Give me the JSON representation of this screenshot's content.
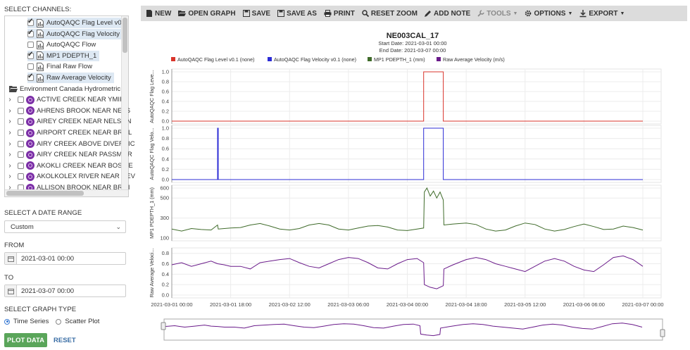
{
  "left": {
    "select_channels": "SELECT CHANNELS:",
    "channels": [
      {
        "label": "AutoQAQC Flag Level v0.",
        "checked": true,
        "selected": true
      },
      {
        "label": "AutoQAQC Flag Velocity •",
        "checked": true,
        "selected": true
      },
      {
        "label": "AutoQAQC Flow",
        "checked": false,
        "selected": false
      },
      {
        "label": "MP1 PDEPTH_1",
        "checked": true,
        "selected": true
      },
      {
        "label": "Final Raw Flow",
        "checked": false,
        "selected": false
      },
      {
        "label": "Raw Average Velocity",
        "checked": true,
        "selected": true
      }
    ],
    "group": "Environment Canada Hydrometric",
    "stations": [
      "ACTIVE CREEK NEAR YMIR",
      "AHRENS BROOK NEAR NELS",
      "AIREY CREEK NEAR NELSON",
      "AIRPORT CREEK NEAR BRILL",
      "AIRY CREEK ABOVE DIVERSIC",
      "AIRY CREEK NEAR PASSMOR",
      "AKOKLI CREEK NEAR BOSWE",
      "AKOLKOLEX RIVER NEAR REV",
      "ALLISON BROOK NEAR BRILI"
    ],
    "date_range_label": "SELECT A DATE RANGE",
    "date_range_value": "Custom",
    "from_label": "FROM",
    "from_value": "2021-03-01 00:00",
    "to_label": "TO",
    "to_value": "2021-03-07 00:00",
    "graph_type_label": "SELECT GRAPH TYPE",
    "time_series": "Time Series",
    "scatter_plot": "Scatter Plot",
    "plot_button": "PLOT DATA",
    "reset_button": "RESET"
  },
  "toolbar": {
    "new": "NEW",
    "open": "OPEN GRAPH",
    "save": "SAVE",
    "save_as": "SAVE AS",
    "print": "PRINT",
    "reset_zoom": "RESET ZOOM",
    "add_note": "ADD NOTE",
    "tools": "TOOLS",
    "options": "OPTIONS",
    "export": "EXPORT"
  },
  "colors": {
    "flag_level": "#d9342b",
    "flag_velocity": "#2c2cd6",
    "pdepth": "#3f6b2a",
    "velocity": "#6a1b8a",
    "accent": "#5aa55a"
  },
  "chart_data": {
    "type": "line",
    "title": "NE003CAL_17",
    "start_date": "Start Date: 2021-03-01 00:00",
    "end_date": "End Date: 2021-03-07 00:00",
    "legend": [
      {
        "name": "AutoQAQC Flag Level v0.1 (none)",
        "color": "#d9342b"
      },
      {
        "name": "AutoQAQC Flag Velocity v0.1 (none)",
        "color": "#2c2cd6"
      },
      {
        "name": "MP1 PDEPTH_1 (mm)",
        "color": "#3f6b2a"
      },
      {
        "name": "Raw Average Velocity (m/s)",
        "color": "#6a1b8a"
      }
    ],
    "x_ticks": [
      "2021-03-01 00:00",
      "2021-03-01 18:00",
      "2021-03-02 12:00",
      "2021-03-03 06:00",
      "2021-03-04 00:00",
      "2021-03-04 18:00",
      "2021-03-05 12:00",
      "2021-03-06 06:00",
      "2021-03-07 00:00"
    ],
    "x_range_hours": [
      0,
      144
    ],
    "panels": [
      {
        "ylabel": "AutoQAQC Flag Leve...",
        "yticks": [
          "1.0",
          "0.8",
          "0.6",
          "0.4",
          "0.2",
          "0.0"
        ],
        "ylim": [
          0,
          1
        ],
        "color": "#d9342b",
        "step": [
          [
            0,
            0
          ],
          [
            77,
            0
          ],
          [
            77,
            1
          ],
          [
            83,
            1
          ],
          [
            83,
            0
          ],
          [
            144,
            0
          ]
        ]
      },
      {
        "ylabel": "AutoQAQC Flag Velo...",
        "yticks": [
          "1.0",
          "0.8",
          "0.6",
          "0.4",
          "0.2",
          "0.0"
        ],
        "ylim": [
          0,
          1
        ],
        "color": "#2c2cd6",
        "step": [
          [
            0,
            0
          ],
          [
            14,
            0
          ],
          [
            14,
            1
          ],
          [
            14.2,
            1
          ],
          [
            14.2,
            0
          ],
          [
            77,
            0
          ],
          [
            77,
            1
          ],
          [
            83,
            1
          ],
          [
            83,
            0
          ],
          [
            144,
            0
          ]
        ]
      },
      {
        "ylabel": "MP1 PDEPTH_1 (mm)",
        "yticks": [
          "600",
          "500",
          "300",
          "100"
        ],
        "ytick_values": [
          600,
          500,
          300,
          100
        ],
        "ylim": [
          100,
          600
        ],
        "color": "#3f6b2a",
        "series": [
          [
            0,
            190
          ],
          [
            3,
            170
          ],
          [
            6,
            195
          ],
          [
            9,
            185
          ],
          [
            12,
            180
          ],
          [
            14,
            230
          ],
          [
            14.2,
            190
          ],
          [
            18,
            200
          ],
          [
            21,
            205
          ],
          [
            24,
            230
          ],
          [
            27,
            245
          ],
          [
            30,
            220
          ],
          [
            33,
            190
          ],
          [
            36,
            180
          ],
          [
            39,
            195
          ],
          [
            42,
            230
          ],
          [
            45,
            245
          ],
          [
            48,
            230
          ],
          [
            51,
            190
          ],
          [
            54,
            180
          ],
          [
            57,
            200
          ],
          [
            60,
            220
          ],
          [
            63,
            225
          ],
          [
            66,
            210
          ],
          [
            69,
            180
          ],
          [
            72,
            175
          ],
          [
            75,
            190
          ],
          [
            77,
            200
          ],
          [
            77.2,
            560
          ],
          [
            78,
            600
          ],
          [
            79,
            520
          ],
          [
            80,
            570
          ],
          [
            81,
            500
          ],
          [
            82,
            560
          ],
          [
            83,
            480
          ],
          [
            83.2,
            230
          ],
          [
            86,
            240
          ],
          [
            90,
            250
          ],
          [
            93,
            235
          ],
          [
            96,
            190
          ],
          [
            99,
            170
          ],
          [
            102,
            180
          ],
          [
            105,
            220
          ],
          [
            108,
            250
          ],
          [
            111,
            235
          ],
          [
            114,
            190
          ],
          [
            117,
            170
          ],
          [
            120,
            185
          ],
          [
            123,
            215
          ],
          [
            126,
            240
          ],
          [
            129,
            215
          ],
          [
            132,
            185
          ],
          [
            135,
            190
          ],
          [
            138,
            220
          ],
          [
            141,
            205
          ],
          [
            144,
            180
          ]
        ]
      },
      {
        "ylabel": "Raw Average Veloci...",
        "yticks": [
          "0.8",
          "0.6",
          "0.4",
          "0.2",
          "0.0"
        ],
        "ytick_values": [
          0.8,
          0.6,
          0.4,
          0.2,
          0.0
        ],
        "ylim": [
          0,
          0.85
        ],
        "color": "#6a1b8a",
        "series": [
          [
            0,
            0.58
          ],
          [
            3,
            0.62
          ],
          [
            6,
            0.55
          ],
          [
            9,
            0.6
          ],
          [
            12,
            0.65
          ],
          [
            14,
            0.6
          ],
          [
            16,
            0.58
          ],
          [
            18,
            0.55
          ],
          [
            21,
            0.55
          ],
          [
            24,
            0.5
          ],
          [
            27,
            0.62
          ],
          [
            30,
            0.65
          ],
          [
            33,
            0.68
          ],
          [
            36,
            0.7
          ],
          [
            39,
            0.62
          ],
          [
            42,
            0.55
          ],
          [
            45,
            0.52
          ],
          [
            48,
            0.6
          ],
          [
            51,
            0.68
          ],
          [
            54,
            0.72
          ],
          [
            57,
            0.7
          ],
          [
            60,
            0.62
          ],
          [
            63,
            0.52
          ],
          [
            66,
            0.5
          ],
          [
            69,
            0.6
          ],
          [
            72,
            0.68
          ],
          [
            75,
            0.7
          ],
          [
            77,
            0.62
          ],
          [
            77.2,
            0.2
          ],
          [
            79,
            0.15
          ],
          [
            81,
            0.12
          ],
          [
            83,
            0.18
          ],
          [
            83.2,
            0.5
          ],
          [
            86,
            0.58
          ],
          [
            90,
            0.68
          ],
          [
            93,
            0.72
          ],
          [
            96,
            0.68
          ],
          [
            99,
            0.6
          ],
          [
            102,
            0.55
          ],
          [
            105,
            0.5
          ],
          [
            108,
            0.45
          ],
          [
            111,
            0.55
          ],
          [
            114,
            0.65
          ],
          [
            117,
            0.7
          ],
          [
            120,
            0.65
          ],
          [
            123,
            0.55
          ],
          [
            126,
            0.48
          ],
          [
            129,
            0.45
          ],
          [
            132,
            0.58
          ],
          [
            135,
            0.72
          ],
          [
            138,
            0.75
          ],
          [
            141,
            0.68
          ],
          [
            144,
            0.55
          ]
        ]
      }
    ]
  }
}
